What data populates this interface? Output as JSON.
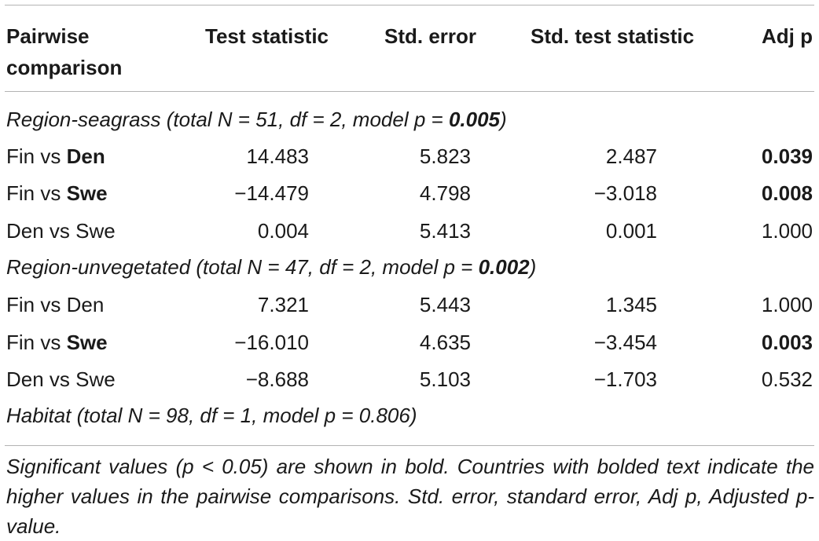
{
  "headers": {
    "comparison": "Pairwise comparison",
    "test_statistic": "Test statistic",
    "std_error": "Std. error",
    "std_test_statistic": "Std. test statistic",
    "adj_p": "Adj p"
  },
  "groups": [
    {
      "label_prefix": "Region-seagrass (total N = 51, df = 2, model p = ",
      "model_p": "0.005",
      "label_suffix": ")",
      "rows": [
        {
          "first": "Fin vs ",
          "second": "Den",
          "second_bold": true,
          "test_statistic": "14.483",
          "std_error": "5.823",
          "std_test_statistic": "2.487",
          "adj_p": "0.039",
          "adj_p_bold": true
        },
        {
          "first": "Fin vs ",
          "second": "Swe",
          "second_bold": true,
          "test_statistic": "−14.479",
          "std_error": "4.798",
          "std_test_statistic": "−3.018",
          "adj_p": "0.008",
          "adj_p_bold": true
        },
        {
          "first": "Den vs ",
          "second": "Swe",
          "second_bold": false,
          "test_statistic": "0.004",
          "std_error": "5.413",
          "std_test_statistic": "0.001",
          "adj_p": "1.000",
          "adj_p_bold": false
        }
      ]
    },
    {
      "label_prefix": "Region-unvegetated (total N = 47, df = 2, model p = ",
      "model_p": "0.002",
      "label_suffix": ")",
      "rows": [
        {
          "first": "Fin vs ",
          "second": "Den",
          "second_bold": false,
          "test_statistic": "7.321",
          "std_error": "5.443",
          "std_test_statistic": "1.345",
          "adj_p": "1.000",
          "adj_p_bold": false
        },
        {
          "first": "Fin vs ",
          "second": "Swe",
          "second_bold": true,
          "test_statistic": "−16.010",
          "std_error": "4.635",
          "std_test_statistic": "−3.454",
          "adj_p": "0.003",
          "adj_p_bold": true
        },
        {
          "first": "Den vs ",
          "second": "Swe",
          "second_bold": false,
          "test_statistic": "−8.688",
          "std_error": "5.103",
          "std_test_statistic": "−1.703",
          "adj_p": "0.532",
          "adj_p_bold": false
        }
      ]
    }
  ],
  "habitat_label": "Habitat (total N = 98, df = 1, model p = 0.806)",
  "footnote": "Significant values (p < 0.05) are shown in bold. Countries with bolded text indicate the higher values in the pairwise comparisons. Std. error, standard error, Adj p, Adjusted p-value."
}
